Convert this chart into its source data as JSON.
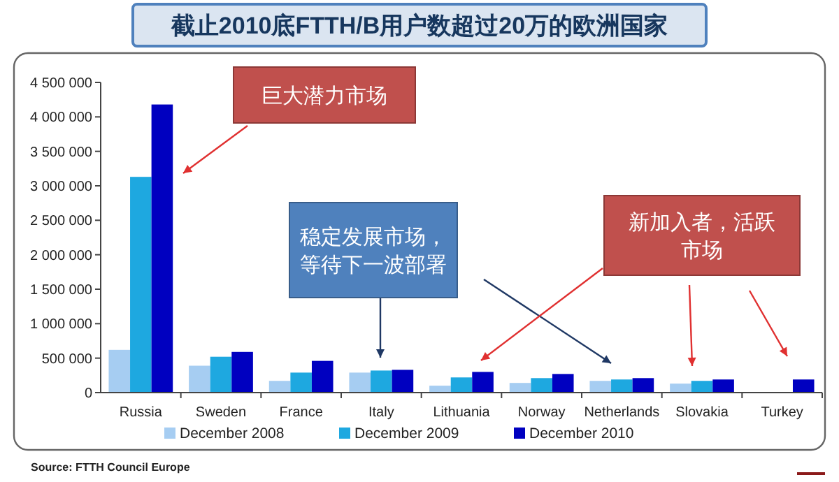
{
  "chart_data": {
    "type": "bar",
    "title": "截止2010底FTTH/B用户数超过20万的欧洲国家",
    "categories": [
      "Russia",
      "Sweden",
      "France",
      "Italy",
      "Lithuania",
      "Norway",
      "Netherlands",
      "Slovakia",
      "Turkey"
    ],
    "series": [
      {
        "name": "December 2008",
        "color": "#a6cdf2",
        "values": [
          620000,
          390000,
          170000,
          290000,
          100000,
          140000,
          170000,
          130000,
          null
        ]
      },
      {
        "name": "December 2009",
        "color": "#1ea8e0",
        "values": [
          3130000,
          520000,
          290000,
          320000,
          220000,
          210000,
          190000,
          170000,
          null
        ]
      },
      {
        "name": "December 2010",
        "color": "#0000c0",
        "values": [
          4180000,
          590000,
          460000,
          330000,
          300000,
          270000,
          210000,
          190000,
          190000
        ]
      }
    ],
    "ylim": [
      0,
      4500000
    ],
    "yticks": [
      {
        "value": 0,
        "label": "0"
      },
      {
        "value": 500000,
        "label": "500 000"
      },
      {
        "value": 1000000,
        "label": "1 000 000"
      },
      {
        "value": 1500000,
        "label": "1 500 000"
      },
      {
        "value": 2000000,
        "label": "2 000 000"
      },
      {
        "value": 2500000,
        "label": "2 500 000"
      },
      {
        "value": 3000000,
        "label": "3 000 000"
      },
      {
        "value": 3500000,
        "label": "3 500 000"
      },
      {
        "value": 4000000,
        "label": "4 000 000"
      },
      {
        "value": 4500000,
        "label": "4 500 000"
      }
    ],
    "grid": false,
    "legend": "bottom",
    "annotations": [
      "巨大潜力市场",
      "稳定发展市场，等待下一波部署",
      "新加入者，活跃市场",
      "Source: FTTH Council Europe"
    ]
  }
}
